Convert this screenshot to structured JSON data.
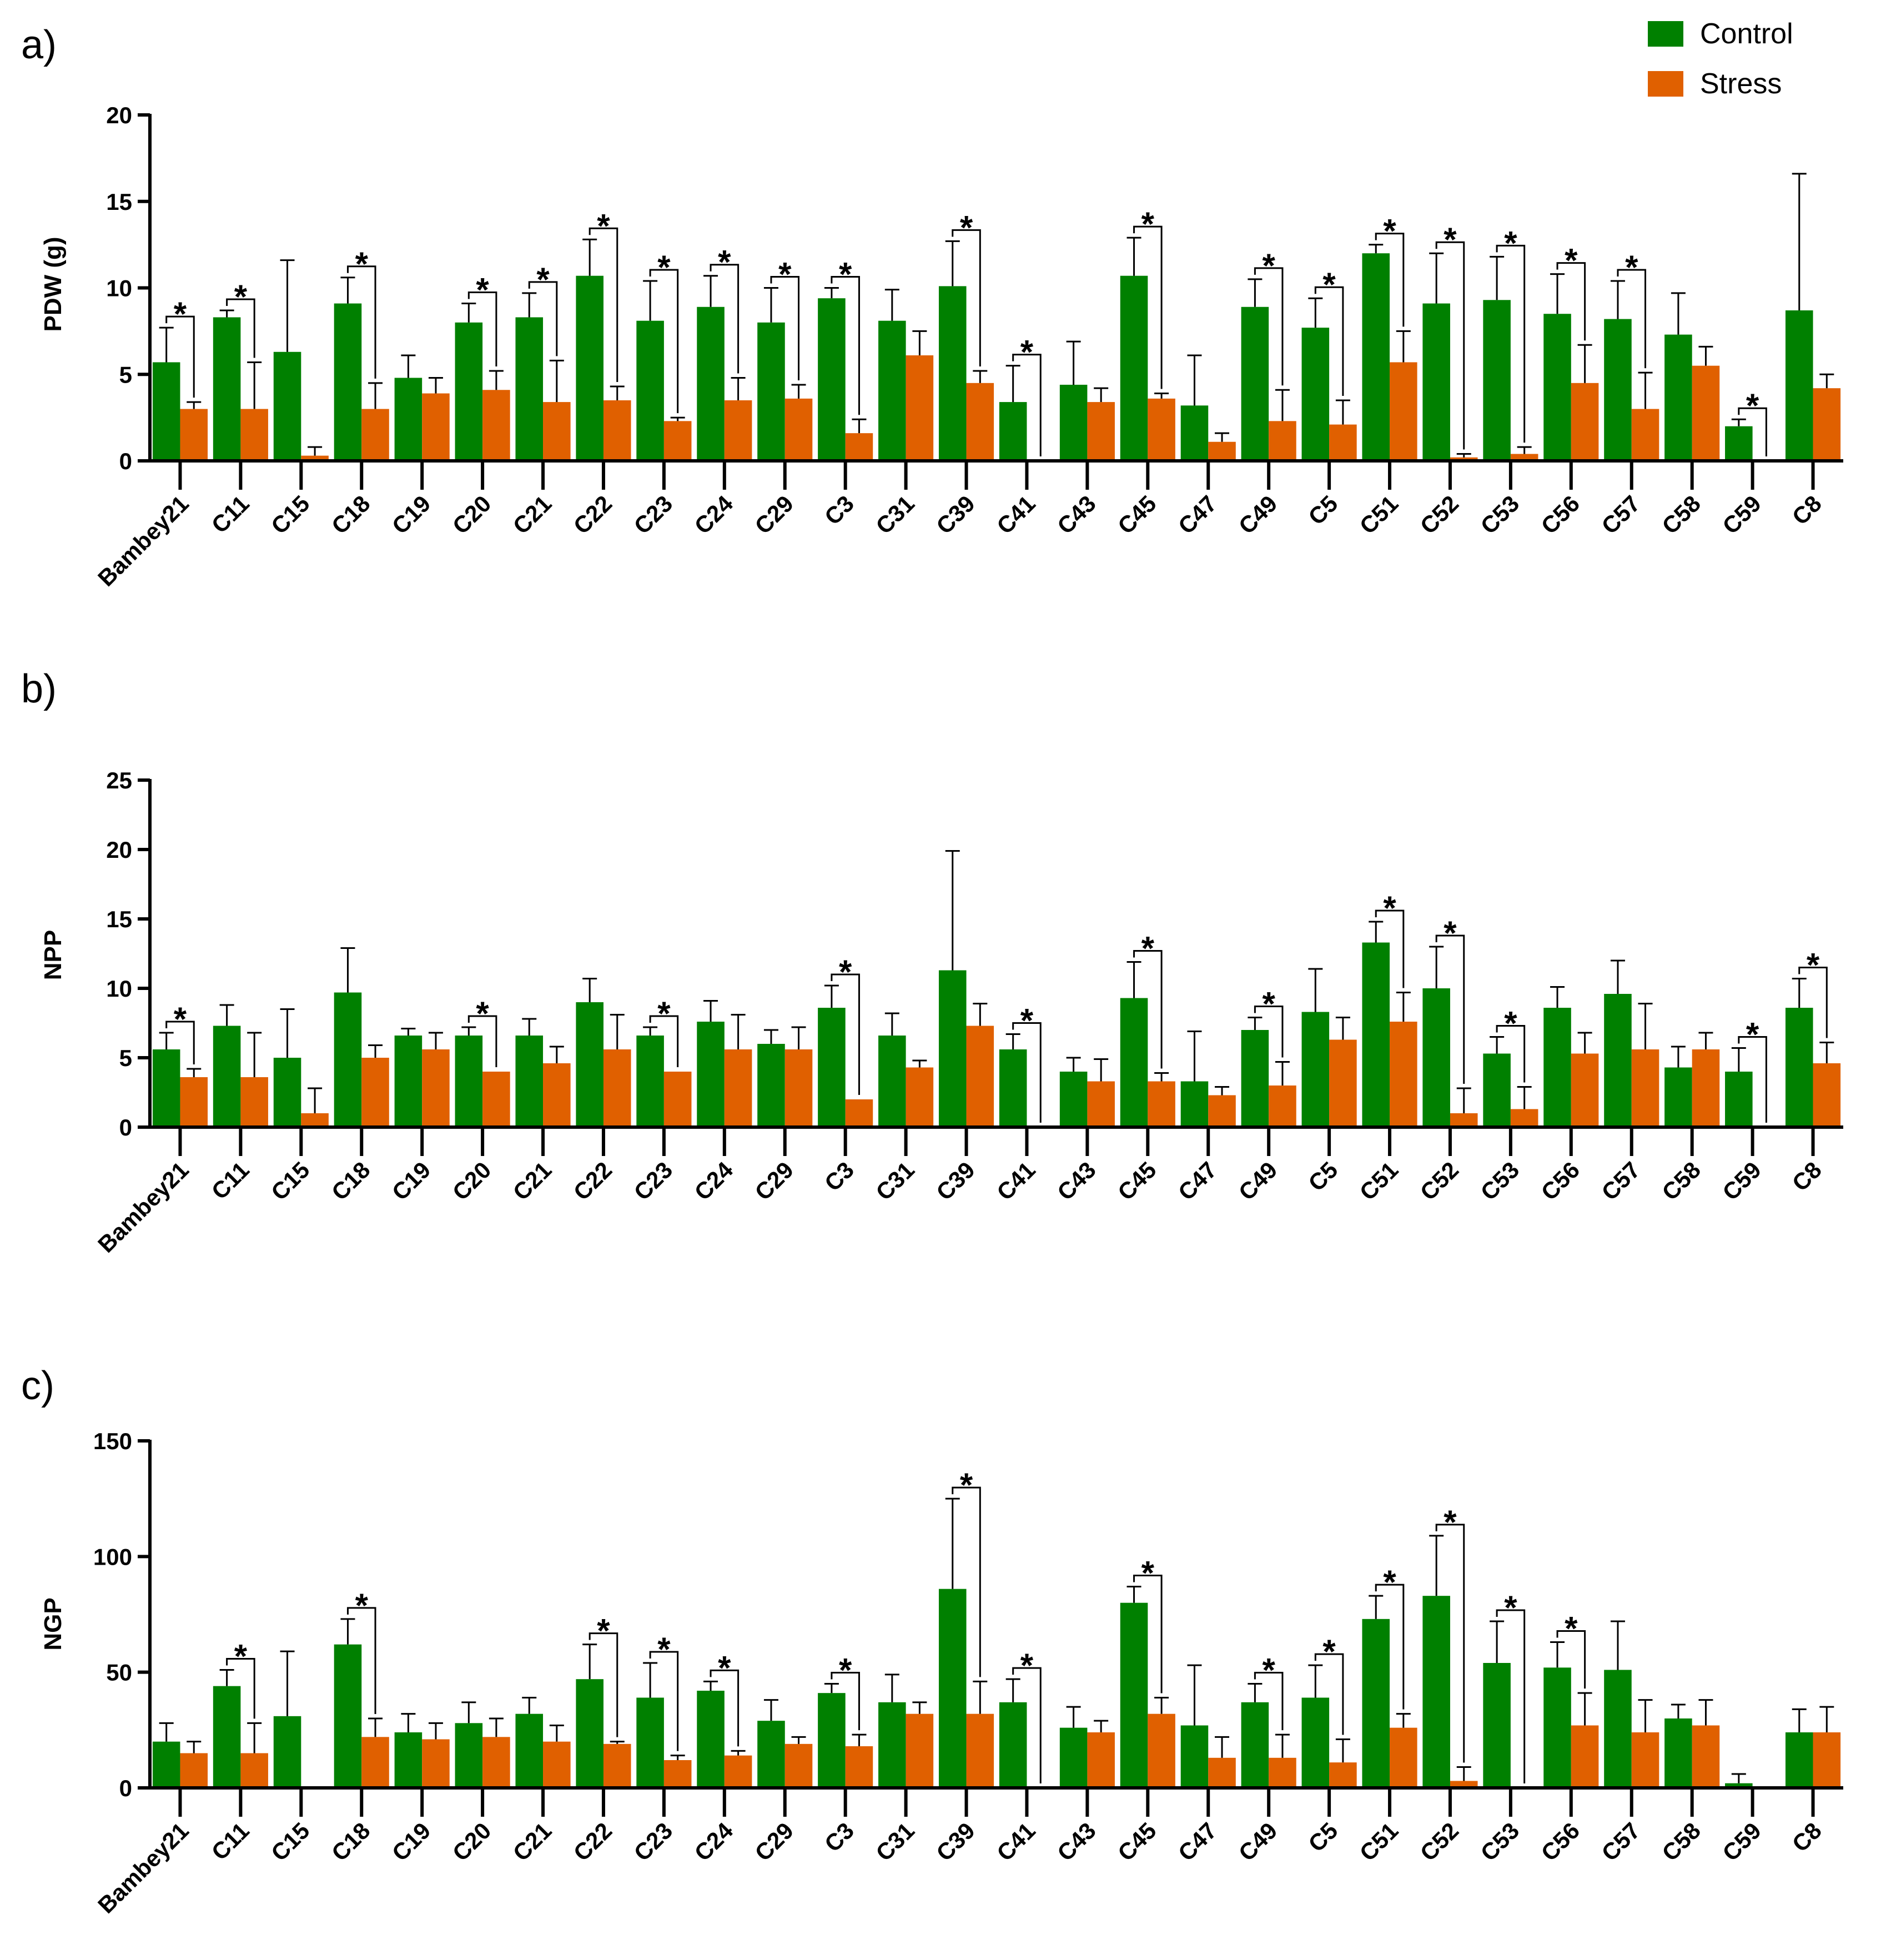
{
  "figure": {
    "legend": [
      {
        "name": "Control",
        "color": "#008000"
      },
      {
        "name": "Stress",
        "color": "#E06000"
      }
    ],
    "sig_marker": "*"
  },
  "chart_data": [
    {
      "type": "bar",
      "panel_label": "a)",
      "ylabel": "PDW (g)",
      "ylim": [
        0,
        20
      ],
      "yticks": [
        "0",
        "5",
        "10",
        "15",
        "20"
      ],
      "categories": [
        "Bambey21",
        "C11",
        "C15",
        "C18",
        "C19",
        "C20",
        "C21",
        "C22",
        "C23",
        "C24",
        "C29",
        "C3",
        "C31",
        "C39",
        "C41",
        "C43",
        "C45",
        "C47",
        "C49",
        "C5",
        "C51",
        "C52",
        "C53",
        "C56",
        "C57",
        "C58",
        "C59",
        "C8"
      ],
      "series": [
        {
          "name": "Control",
          "values": [
            5.7,
            8.3,
            6.3,
            9.1,
            4.8,
            8.0,
            8.3,
            10.7,
            8.1,
            8.9,
            8.0,
            9.4,
            8.1,
            10.1,
            3.4,
            4.4,
            10.7,
            3.2,
            8.9,
            7.7,
            12.0,
            9.1,
            9.3,
            8.5,
            8.2,
            7.3,
            2.0,
            8.7
          ],
          "errors": [
            2.0,
            0.4,
            5.3,
            1.5,
            1.3,
            1.1,
            1.4,
            2.1,
            2.3,
            1.8,
            2.0,
            0.6,
            1.8,
            2.6,
            2.1,
            2.5,
            2.2,
            2.9,
            1.6,
            1.7,
            0.5,
            2.9,
            2.5,
            2.3,
            2.2,
            2.4,
            0.4,
            7.9
          ]
        },
        {
          "name": "Stress",
          "values": [
            3.0,
            3.0,
            0.3,
            3.0,
            3.9,
            4.1,
            3.4,
            3.5,
            2.3,
            3.5,
            3.6,
            1.6,
            6.1,
            4.5,
            0.0,
            3.4,
            3.6,
            1.1,
            2.3,
            2.1,
            5.7,
            0.2,
            0.4,
            4.5,
            3.0,
            5.5,
            0.0,
            4.2
          ],
          "errors": [
            0.4,
            2.7,
            0.5,
            1.5,
            0.9,
            1.1,
            2.4,
            0.8,
            0.2,
            1.3,
            0.8,
            0.8,
            1.4,
            0.7,
            0.0,
            0.8,
            0.3,
            0.5,
            1.8,
            1.4,
            1.8,
            0.2,
            0.4,
            2.2,
            2.1,
            1.1,
            0.0,
            0.8
          ]
        }
      ],
      "significant": [
        "Bambey21",
        "C11",
        "C18",
        "C20",
        "C21",
        "C22",
        "C23",
        "C24",
        "C29",
        "C3",
        "C39",
        "C41",
        "C45",
        "C49",
        "C5",
        "C51",
        "C52",
        "C53",
        "C56",
        "C57",
        "C59"
      ]
    },
    {
      "type": "bar",
      "panel_label": "b)",
      "ylabel": "NPP",
      "ylim": [
        0,
        25
      ],
      "yticks": [
        "0",
        "5",
        "10",
        "15",
        "20",
        "25"
      ],
      "categories": [
        "Bambey21",
        "C11",
        "C15",
        "C18",
        "C19",
        "C20",
        "C21",
        "C22",
        "C23",
        "C24",
        "C29",
        "C3",
        "C31",
        "C39",
        "C41",
        "C43",
        "C45",
        "C47",
        "C49",
        "C5",
        "C51",
        "C52",
        "C53",
        "C56",
        "C57",
        "C58",
        "C59",
        "C8"
      ],
      "series": [
        {
          "name": "Control",
          "values": [
            5.6,
            7.3,
            5.0,
            9.7,
            6.6,
            6.6,
            6.6,
            9.0,
            6.6,
            7.6,
            6.0,
            8.6,
            6.6,
            11.3,
            5.6,
            4.0,
            9.3,
            3.3,
            7.0,
            8.3,
            13.3,
            10.0,
            5.3,
            8.6,
            9.6,
            4.3,
            4.0,
            8.6
          ],
          "errors": [
            1.2,
            1.5,
            3.5,
            3.2,
            0.5,
            0.6,
            1.2,
            1.7,
            0.6,
            1.5,
            1.0,
            1.6,
            1.6,
            8.6,
            1.1,
            1.0,
            2.6,
            3.6,
            0.9,
            3.1,
            1.5,
            3.0,
            1.2,
            1.5,
            2.4,
            1.5,
            1.7,
            2.1
          ]
        },
        {
          "name": "Stress",
          "values": [
            3.6,
            3.6,
            1.0,
            5.0,
            5.6,
            4.0,
            4.6,
            5.6,
            4.0,
            5.6,
            5.6,
            2.0,
            4.3,
            7.3,
            0.0,
            3.3,
            3.3,
            2.3,
            3.0,
            6.3,
            7.6,
            1.0,
            1.3,
            5.3,
            5.6,
            5.6,
            0.0,
            4.6
          ],
          "errors": [
            0.6,
            3.2,
            1.8,
            0.9,
            1.2,
            0.0,
            1.2,
            2.5,
            0.0,
            2.5,
            1.6,
            0.0,
            0.5,
            1.6,
            0.0,
            1.6,
            0.6,
            0.6,
            1.7,
            1.6,
            2.1,
            1.8,
            1.6,
            1.5,
            3.3,
            1.2,
            0.0,
            1.5
          ]
        }
      ],
      "significant": [
        "Bambey21",
        "C20",
        "C23",
        "C3",
        "C41",
        "C45",
        "C49",
        "C51",
        "C52",
        "C53",
        "C59",
        "C8"
      ]
    },
    {
      "type": "bar",
      "panel_label": "c)",
      "ylabel": "NGP",
      "ylim": [
        0,
        150
      ],
      "yticks": [
        "0",
        "50",
        "100",
        "150"
      ],
      "categories": [
        "Bambey21",
        "C11",
        "C15",
        "C18",
        "C19",
        "C20",
        "C21",
        "C22",
        "C23",
        "C24",
        "C29",
        "C3",
        "C31",
        "C39",
        "C41",
        "C43",
        "C45",
        "C47",
        "C49",
        "C5",
        "C51",
        "C52",
        "C53",
        "C56",
        "C57",
        "C58",
        "C59",
        "C8"
      ],
      "series": [
        {
          "name": "Control",
          "values": [
            20,
            44,
            31,
            62,
            24,
            28,
            32,
            47,
            39,
            42,
            29,
            41,
            37,
            86,
            37,
            26,
            80,
            27,
            37,
            39,
            73,
            83,
            54,
            52,
            51,
            30,
            2,
            24
          ],
          "errors": [
            8,
            7,
            28,
            11,
            8,
            9,
            7,
            15,
            15,
            4,
            9,
            4,
            12,
            39,
            10,
            9,
            7,
            26,
            8,
            14,
            10,
            26,
            18,
            11,
            21,
            6,
            4,
            10
          ]
        },
        {
          "name": "Stress",
          "values": [
            15,
            15,
            0,
            22,
            21,
            22,
            20,
            19,
            12,
            14,
            19,
            18,
            32,
            32,
            0,
            24,
            32,
            13,
            13,
            11,
            26,
            3,
            0,
            27,
            24,
            27,
            0,
            24
          ],
          "errors": [
            5,
            13,
            0,
            8,
            7,
            8,
            7,
            1,
            2,
            2,
            3,
            5,
            5,
            14,
            0,
            5,
            7,
            9,
            10,
            10,
            6,
            6,
            0,
            14,
            14,
            11,
            0,
            11
          ]
        }
      ],
      "significant": [
        "C11",
        "C18",
        "C22",
        "C23",
        "C24",
        "C3",
        "C39",
        "C41",
        "C45",
        "C49",
        "C5",
        "C51",
        "C52",
        "C53",
        "C56"
      ]
    }
  ]
}
